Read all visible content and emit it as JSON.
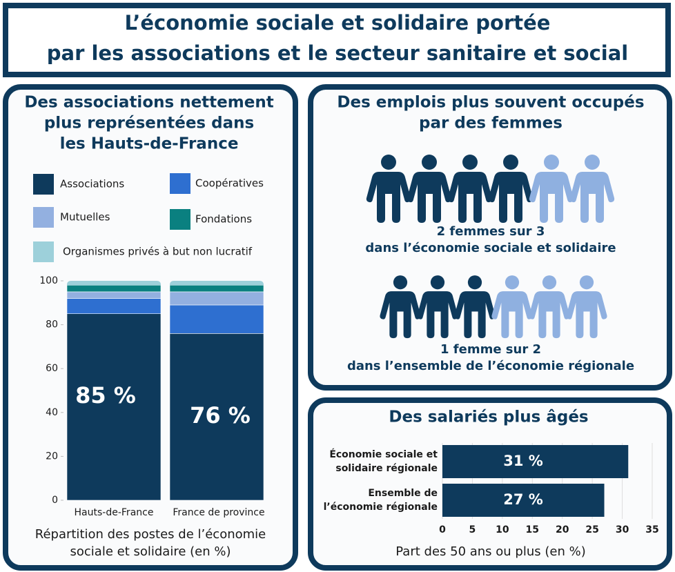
{
  "title": [
    "L’économie sociale et solidaire portée",
    "par les associations et le secteur sanitaire et social"
  ],
  "chart_data": [
    {
      "type": "stacked-bar",
      "title": [
        "Des associations nettement",
        "plus représentées dans",
        "les Hauts-de-France"
      ],
      "categories": [
        "Hauts-de-France",
        "France de province"
      ],
      "series": [
        {
          "name": "Associations",
          "color": "#0e3a5c",
          "values": [
            85,
            76
          ],
          "value_labels": [
            "85 %",
            "76 %"
          ]
        },
        {
          "name": "Coopératives",
          "color": "#2e6fd0",
          "values": [
            7,
            13
          ]
        },
        {
          "name": "Mutuelles",
          "color": "#93b0e0",
          "values": [
            3,
            6
          ]
        },
        {
          "name": "Fondations",
          "color": "#0a8080",
          "values": [
            3,
            3
          ]
        },
        {
          "name": "Organismes privés à but non lucratif",
          "color": "#9dd0da",
          "values": [
            2,
            2
          ]
        }
      ],
      "ylim": [
        0,
        100
      ],
      "yticks": [
        0,
        20,
        40,
        60,
        80,
        100
      ],
      "xlabel": [
        "Répartition des postes de l’économie",
        "sociale et solidaire (en %)"
      ]
    },
    {
      "type": "pictogram",
      "title": [
        "Des emplois plus souvent occupés",
        "par des femmes"
      ],
      "rows": [
        {
          "label": [
            "2 femmes sur 3",
            "dans l’économie sociale et solidaire"
          ],
          "filled": 4,
          "total": 6
        },
        {
          "label": [
            "1 femme sur 2",
            "dans l’ensemble de l’économie régionale"
          ],
          "filled": 3,
          "total": 6
        }
      ],
      "filled_color": "#0e3a5c",
      "empty_color": "#8fb0e0"
    },
    {
      "type": "hbar",
      "title": "Des salariés plus âgés",
      "categories": [
        [
          "Économie sociale et",
          "solidaire régionale"
        ],
        [
          "Ensemble de",
          "l’économie régionale"
        ]
      ],
      "values": [
        31,
        27
      ],
      "value_labels": [
        "31 %",
        "27 %"
      ],
      "color": "#0e3a5c",
      "xlim": [
        0,
        35
      ],
      "xticks": [
        0,
        5,
        10,
        15,
        20,
        25,
        30,
        35
      ],
      "grid": true,
      "xlabel": "Part des 50 ans ou plus (en %)"
    }
  ]
}
